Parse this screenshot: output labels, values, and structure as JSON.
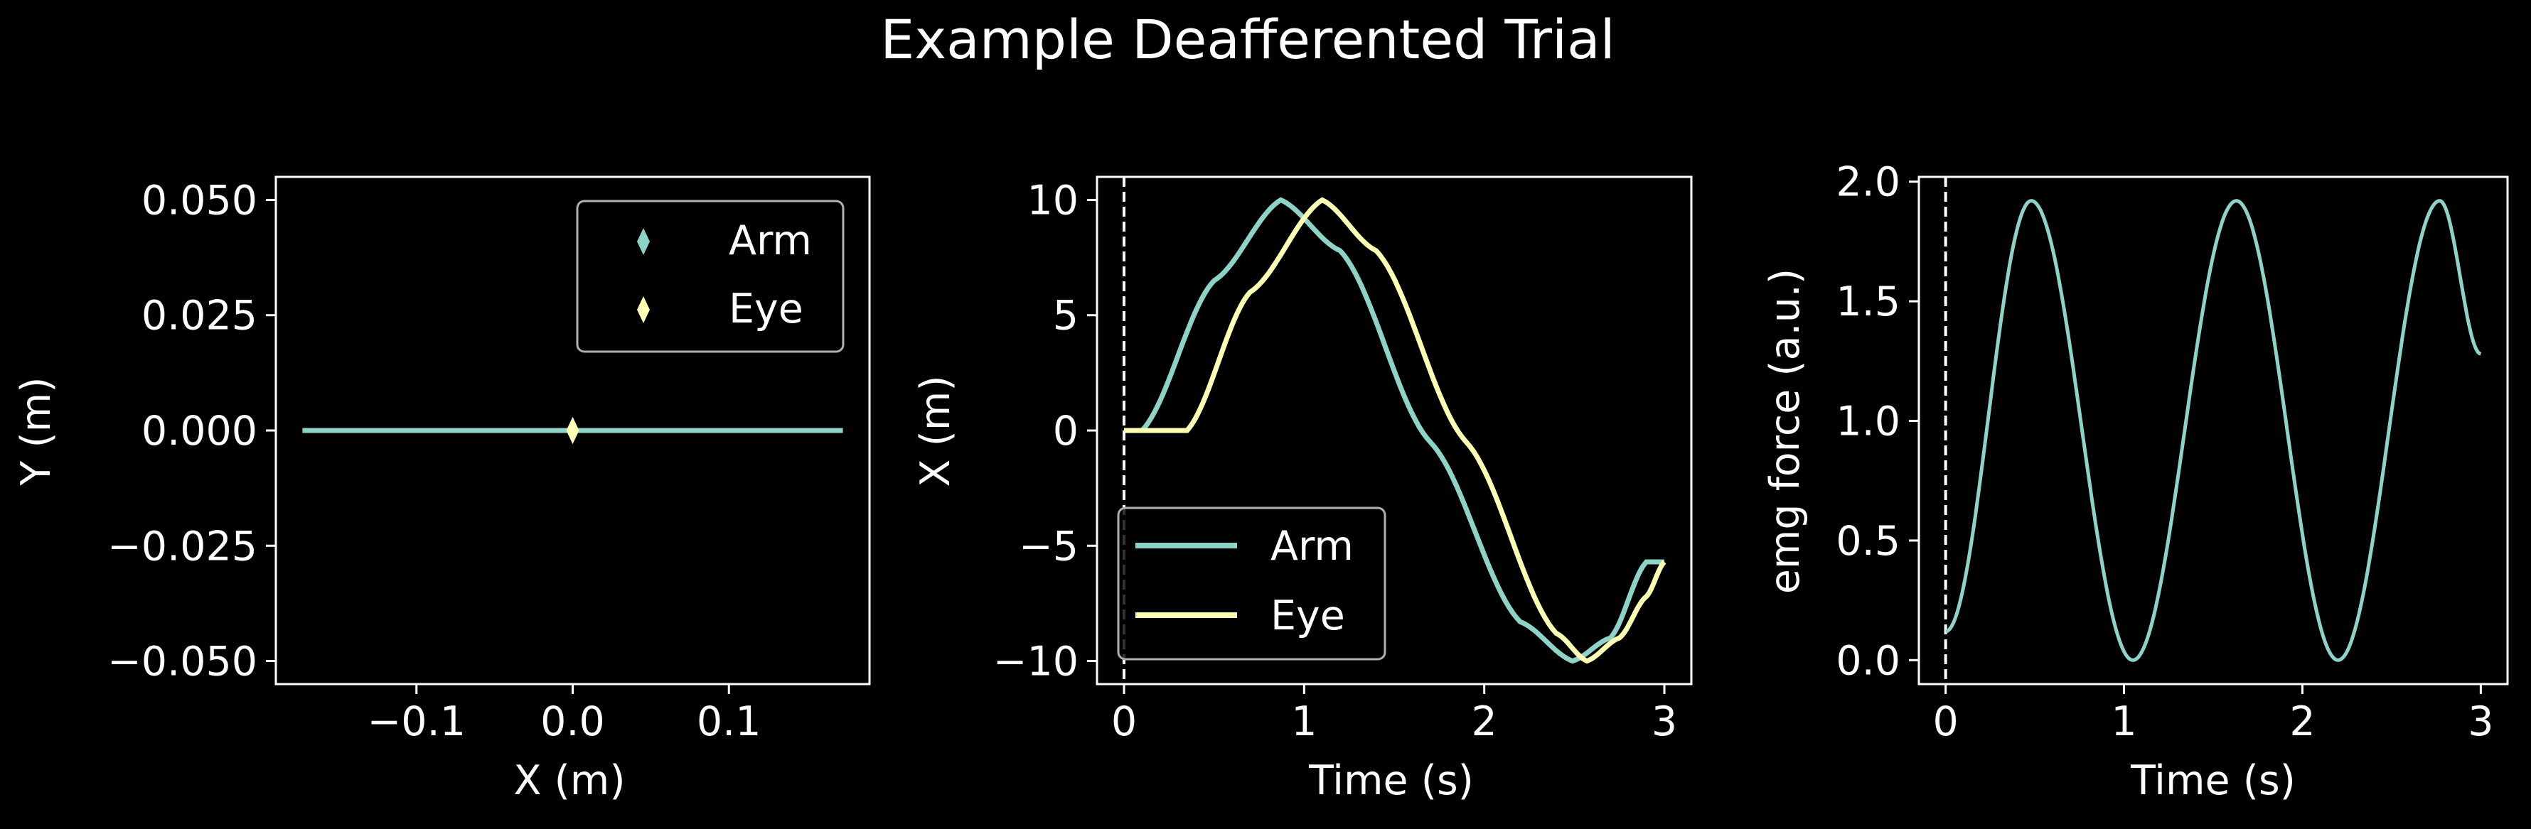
{
  "title": "Example Deafferented Trial",
  "colors": {
    "background": "#000000",
    "foreground": "#ffffff",
    "arm": "#8dd3c7",
    "eye": "#ffffb3",
    "legend_border": "#b0b0b0"
  },
  "chart_data": [
    {
      "type": "line",
      "xlabel": "X (m)",
      "ylabel": "Y (m)",
      "xlim": [
        -0.19,
        0.19
      ],
      "ylim": [
        -0.055,
        0.055
      ],
      "xticks": [
        -0.1,
        0.0,
        0.1
      ],
      "xtick_labels": [
        "−0.1",
        "0.0",
        "0.1"
      ],
      "yticks": [
        -0.05,
        -0.025,
        0.0,
        0.025,
        0.05
      ],
      "ytick_labels": [
        "−0.050",
        "−0.025",
        "0.000",
        "0.025",
        "0.050"
      ],
      "grid": false,
      "legend": {
        "location": "upper right",
        "marker": "diamond",
        "entries": [
          "Arm",
          "Eye"
        ]
      },
      "series": [
        {
          "name": "Arm",
          "x": [
            -0.173,
            0.173
          ],
          "y": [
            0,
            0
          ]
        }
      ],
      "markers": [
        {
          "name": "Arm",
          "x": 0.0,
          "y": 0.0
        },
        {
          "name": "Eye",
          "x": 0.0,
          "y": 0.0
        }
      ]
    },
    {
      "type": "line",
      "xlabel": "Time (s)",
      "ylabel": "X (m)",
      "xlim": [
        -0.15,
        3.15
      ],
      "ylim": [
        -11,
        11
      ],
      "xticks": [
        0,
        1,
        2,
        3
      ],
      "xtick_labels": [
        "0",
        "1",
        "2",
        "3"
      ],
      "yticks": [
        -10,
        -5,
        0,
        5,
        10
      ],
      "ytick_labels": [
        "−10",
        "−5",
        "0",
        "5",
        "10"
      ],
      "grid": false,
      "vline": {
        "x": 0,
        "style": "dashed"
      },
      "legend": {
        "location": "lower left",
        "marker": "line",
        "entries": [
          "Arm",
          "Eye"
        ]
      },
      "series": [
        {
          "name": "Arm",
          "x": [
            0.0,
            0.1,
            0.5,
            0.87,
            1.2,
            1.7,
            2.2,
            2.49,
            2.7,
            2.9,
            3.0
          ],
          "y": [
            0.0,
            0.0,
            6.5,
            10.0,
            7.8,
            -0.5,
            -8.3,
            -10.0,
            -9.0,
            -5.7,
            -5.7
          ]
        },
        {
          "name": "Eye",
          "x": [
            0.0,
            0.35,
            0.7,
            1.1,
            1.4,
            1.9,
            2.4,
            2.57,
            2.75,
            2.9,
            3.0
          ],
          "y": [
            0.0,
            0.0,
            6.0,
            10.0,
            7.8,
            -0.5,
            -8.8,
            -10.0,
            -9.0,
            -7.2,
            -5.7
          ]
        }
      ]
    },
    {
      "type": "line",
      "xlabel": "Time (s)",
      "ylabel": "emg force (a.u.)",
      "xlim": [
        -0.15,
        3.15
      ],
      "ylim": [
        -0.1,
        2.02
      ],
      "xticks": [
        0,
        1,
        2,
        3
      ],
      "xtick_labels": [
        "0",
        "1",
        "2",
        "3"
      ],
      "yticks": [
        0.0,
        0.5,
        1.0,
        1.5,
        2.0
      ],
      "ytick_labels": [
        "0.0",
        "0.5",
        "1.0",
        "1.5",
        "2.0"
      ],
      "grid": false,
      "vline": {
        "x": 0,
        "style": "dashed"
      },
      "series": [
        {
          "name": "emg force",
          "peaks": [
            0.48,
            1.63,
            2.77
          ],
          "troughs": [
            1.05,
            2.2
          ],
          "max": 1.92,
          "min": 0.0,
          "start": [
            0.0,
            0.12
          ],
          "end": [
            3.0,
            1.28
          ]
        }
      ]
    }
  ]
}
